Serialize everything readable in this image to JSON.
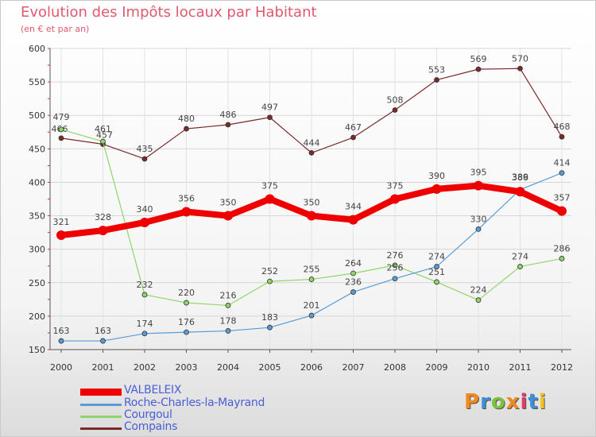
{
  "title": "Evolution des Impôts locaux par Habitant",
  "subtitle": "(en € et par an)",
  "logo": {
    "text": "Proxiti",
    "letter_colors": [
      "#f08a1c",
      "#3d8fd6",
      "#7cc23a",
      "#f08a1c",
      "#e53a6c",
      "#3d8fd6",
      "#f5c21c"
    ]
  },
  "chart_data": {
    "type": "line",
    "x": [
      2000,
      2001,
      2002,
      2003,
      2004,
      2005,
      2006,
      2007,
      2008,
      2009,
      2010,
      2011,
      2012
    ],
    "ylim": [
      150,
      600
    ],
    "yticks": [
      150,
      200,
      250,
      300,
      350,
      400,
      450,
      500,
      550,
      600
    ],
    "grid": true,
    "legend_position": "bottom-left",
    "series": [
      {
        "name": "Compains",
        "color": "#7a2a2a",
        "values": [
          466,
          457,
          435,
          480,
          486,
          497,
          444,
          467,
          508,
          553,
          569,
          570,
          468
        ]
      },
      {
        "name": "Courgoul",
        "color": "#8fd66a",
        "values": [
          479,
          461,
          232,
          220,
          216,
          252,
          255,
          264,
          276,
          251,
          224,
          274,
          286
        ]
      },
      {
        "name": "Roche-Charles-la-Mayrand",
        "color": "#5a9bd5",
        "values": [
          163,
          163,
          174,
          176,
          178,
          183,
          201,
          236,
          256,
          274,
          330,
          389,
          414
        ]
      },
      {
        "name": "VALBELEIX",
        "color": "#ee0000",
        "values": [
          321,
          328,
          340,
          356,
          350,
          375,
          350,
          344,
          375,
          390,
          395,
          386,
          357
        ]
      }
    ],
    "legend_order": [
      "VALBELEIX",
      "Roche-Charles-la-Mayrand",
      "Courgoul",
      "Compains"
    ]
  }
}
